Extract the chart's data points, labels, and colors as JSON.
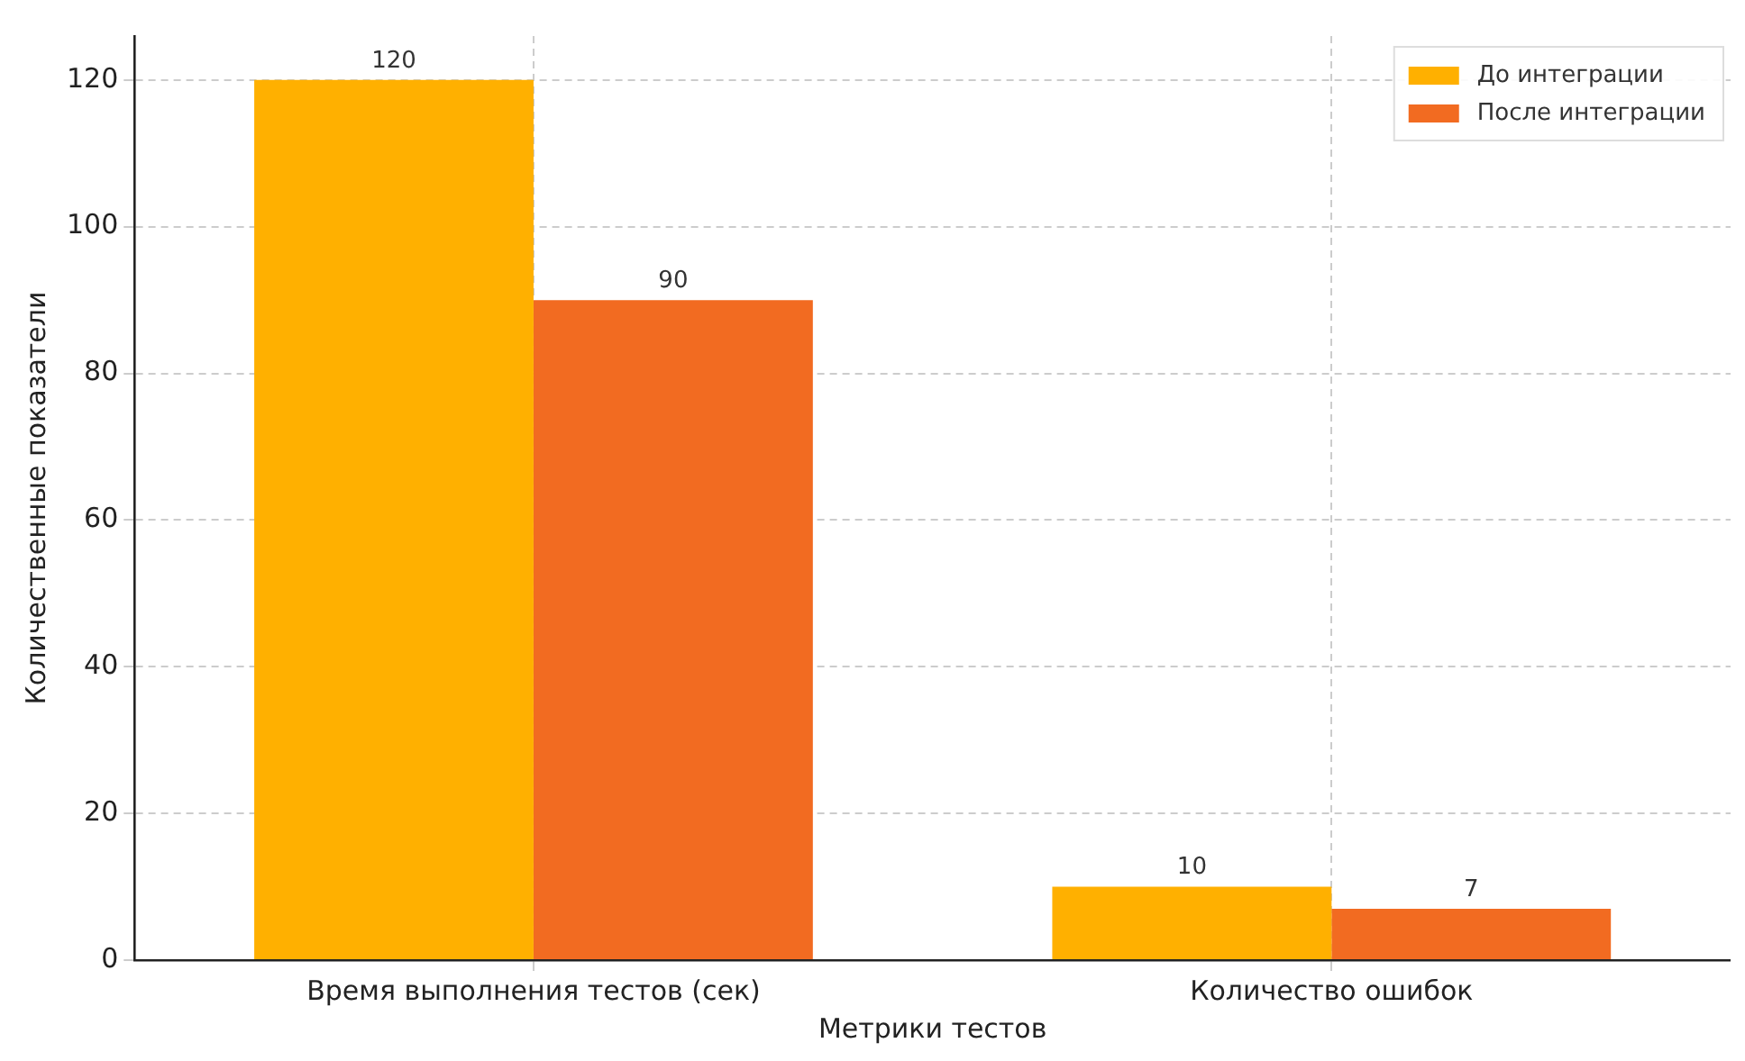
{
  "chart_data": {
    "type": "bar",
    "xlabel": "Метрики тестов",
    "ylabel": "Количественные показатели",
    "categories": [
      "Время выполнения тестов (сек)",
      "Количество ошибок"
    ],
    "series": [
      {
        "name": "До интеграции",
        "color": "#ffb000",
        "values": [
          120,
          10
        ]
      },
      {
        "name": "После интеграции",
        "color": "#f26b21",
        "values": [
          90,
          7
        ]
      }
    ],
    "ylim": [
      0,
      126
    ],
    "yticks": [
      0,
      20,
      40,
      60,
      80,
      100,
      120
    ],
    "grid": true,
    "line_style": "dashed",
    "legend": "top right",
    "data_labels": true
  }
}
